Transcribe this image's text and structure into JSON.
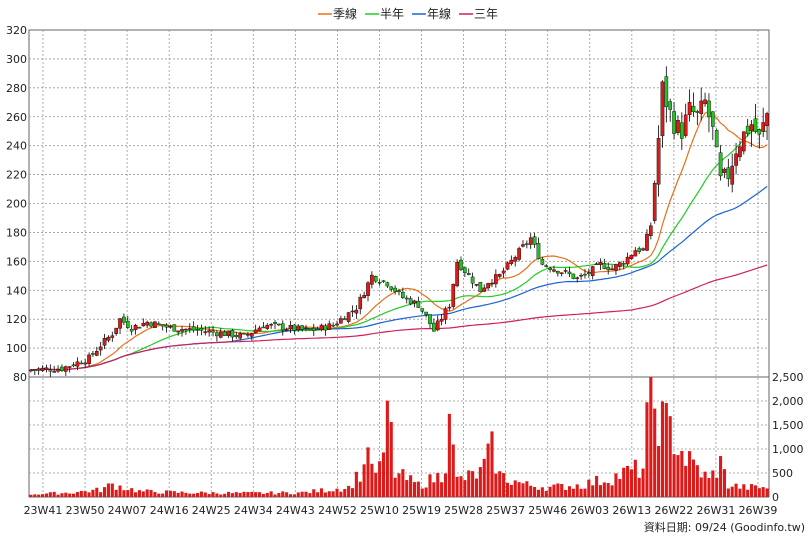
{
  "chart_data": {
    "type": "candlestick",
    "legend": [
      {
        "name": "季線",
        "color": "#e8701a"
      },
      {
        "name": "半年",
        "color": "#22cc22"
      },
      {
        "name": "年線",
        "color": "#1a64d2"
      },
      {
        "name": "三年",
        "color": "#d0205a"
      }
    ],
    "price_axis": {
      "ylim": [
        80,
        320
      ],
      "ticks": [
        80,
        100,
        120,
        140,
        160,
        180,
        200,
        220,
        240,
        260,
        280,
        300,
        320
      ]
    },
    "volume_axis": {
      "ylim": [
        0,
        2500
      ],
      "ticks": [
        "0",
        "500",
        "1,000",
        "1,500",
        "2,000",
        "2,500"
      ],
      "values": [
        0,
        500,
        1000,
        1500,
        2000,
        2500
      ]
    },
    "x_ticks": [
      "23W41",
      "23W50",
      "24W07",
      "24W16",
      "24W25",
      "24W34",
      "24W43",
      "24W52",
      "25W10",
      "25W19",
      "25W28",
      "25W37",
      "25W46",
      "26W03",
      "26W13",
      "26W22",
      "26W31",
      "26W39"
    ],
    "grid": true,
    "up_color": "#dd1a1a",
    "down_color": "#22c422",
    "volume_color": "#dd1a1a",
    "footnote": "資料日期: 09/24  (Goodinfo.tw)",
    "price_anchors": [
      [
        0,
        85
      ],
      [
        8,
        86
      ],
      [
        15,
        93
      ],
      [
        18,
        102
      ],
      [
        21,
        110
      ],
      [
        23,
        120
      ],
      [
        26,
        114
      ],
      [
        30,
        118
      ],
      [
        36,
        114
      ],
      [
        44,
        112
      ],
      [
        50,
        110
      ],
      [
        55,
        108
      ],
      [
        60,
        116
      ],
      [
        66,
        114
      ],
      [
        72,
        112
      ],
      [
        78,
        116
      ],
      [
        84,
        128
      ],
      [
        88,
        150
      ],
      [
        92,
        145
      ],
      [
        96,
        135
      ],
      [
        100,
        130
      ],
      [
        102,
        122
      ],
      [
        104,
        112
      ],
      [
        108,
        130
      ],
      [
        110,
        160
      ],
      [
        113,
        150
      ],
      [
        116,
        140
      ],
      [
        118,
        146
      ],
      [
        121,
        150
      ],
      [
        124,
        160
      ],
      [
        127,
        170
      ],
      [
        129,
        176
      ],
      [
        132,
        158
      ],
      [
        135,
        155
      ],
      [
        138,
        152
      ],
      [
        141,
        148
      ],
      [
        144,
        152
      ],
      [
        147,
        158
      ],
      [
        150,
        155
      ],
      [
        153,
        160
      ],
      [
        156,
        168
      ],
      [
        158,
        168
      ],
      [
        160,
        185
      ],
      [
        162,
        245
      ],
      [
        163,
        280
      ],
      [
        164,
        270
      ],
      [
        166,
        255
      ],
      [
        168,
        250
      ],
      [
        170,
        265
      ],
      [
        172,
        260
      ],
      [
        174,
        270
      ],
      [
        176,
        250
      ],
      [
        178,
        215
      ],
      [
        180,
        220
      ],
      [
        182,
        238
      ],
      [
        184,
        248
      ],
      [
        186,
        255
      ],
      [
        188,
        245
      ],
      [
        190,
        262
      ]
    ],
    "volume_anchors": [
      [
        0,
        60
      ],
      [
        10,
        90
      ],
      [
        18,
        150
      ],
      [
        21,
        260
      ],
      [
        24,
        200
      ],
      [
        28,
        120
      ],
      [
        40,
        90
      ],
      [
        55,
        80
      ],
      [
        70,
        90
      ],
      [
        82,
        200
      ],
      [
        86,
        600
      ],
      [
        87,
        1350
      ],
      [
        88,
        500
      ],
      [
        91,
        700
      ],
      [
        92,
        1950
      ],
      [
        94,
        500
      ],
      [
        100,
        250
      ],
      [
        106,
        450
      ],
      [
        107,
        800
      ],
      [
        108,
        2350
      ],
      [
        109,
        900
      ],
      [
        110,
        350
      ],
      [
        116,
        500
      ],
      [
        119,
        1000
      ],
      [
        121,
        450
      ],
      [
        124,
        350
      ],
      [
        128,
        250
      ],
      [
        134,
        200
      ],
      [
        142,
        250
      ],
      [
        150,
        400
      ],
      [
        155,
        550
      ],
      [
        158,
        600
      ],
      [
        159,
        1500
      ],
      [
        160,
        2450
      ],
      [
        161,
        1900
      ],
      [
        163,
        1550
      ],
      [
        165,
        1400
      ],
      [
        167,
        1100
      ],
      [
        169,
        800
      ],
      [
        172,
        600
      ],
      [
        175,
        350
      ],
      [
        178,
        700
      ],
      [
        180,
        250
      ],
      [
        184,
        200
      ],
      [
        190,
        200
      ]
    ]
  }
}
